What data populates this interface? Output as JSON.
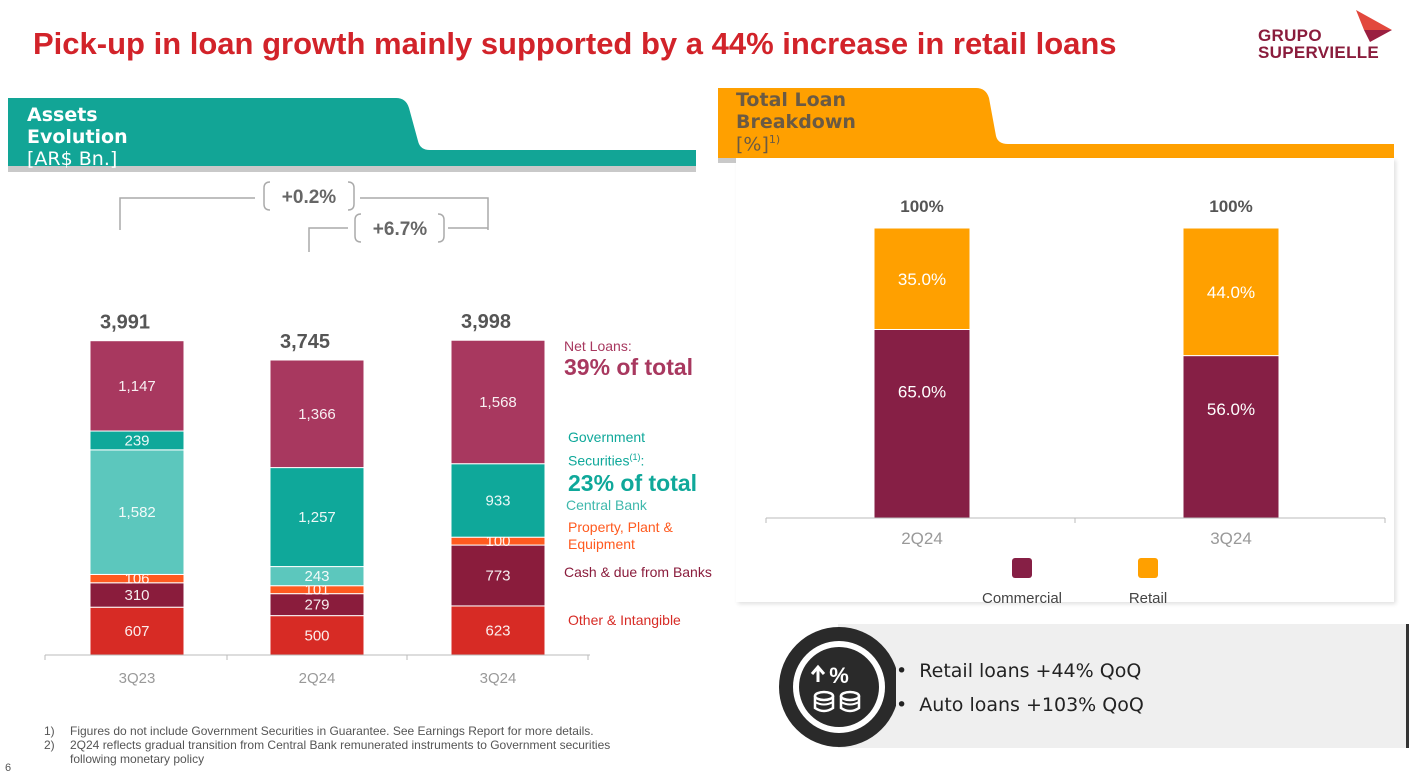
{
  "title": "Pick-up in loan growth mainly supported by a 44% increase in retail loans",
  "logo": {
    "line1": "GRUPO",
    "line2": "SUPERVIELLE"
  },
  "colors": {
    "red": "#d2232a",
    "teal": "#0fa89a",
    "lightTeal": "#5cc7bd",
    "maroon": "#8a1c3c",
    "rose": "#a8385f",
    "orange": "#ff5a1f",
    "gold": "#ffa000"
  },
  "assets_panel": {
    "title": "Assets Evolution",
    "unit": "[AR$ Bn.]",
    "change_all": "+0.2%",
    "change_qoq": "+6.7%",
    "legend": {
      "net_loans": "Net Loans:",
      "net_loans_share": "39% of total",
      "gov_sec_line1": "Government",
      "gov_sec_line2": "Securities",
      "gov_sec_sup": "(1)",
      "gov_sec_colon": ":",
      "gov_sec_share": "23% of total",
      "central_bank": "Central Bank",
      "ppe_line1": "Property, Plant &",
      "ppe_line2": "Equipment",
      "cash": "Cash & due from Banks",
      "other": "Other & Intangible"
    }
  },
  "loan_panel": {
    "title": "Total Loan Breakdown",
    "unit": "[%]",
    "unit_sup": "1)"
  },
  "chart_data": [
    {
      "type": "bar",
      "stacked": true,
      "categories": [
        "3Q23",
        "2Q24",
        "3Q24"
      ],
      "totals": [
        3991,
        3745,
        3998
      ],
      "total_labels": [
        "3,991",
        "3,745",
        "3,998"
      ],
      "series": [
        {
          "name": "Other & Intangible",
          "values": [
            607,
            500,
            623
          ],
          "labels": [
            "607",
            "500",
            "623"
          ],
          "color": "#d72b25"
        },
        {
          "name": "Cash & due from Banks",
          "values": [
            310,
            279,
            773
          ],
          "labels": [
            "310",
            "279",
            "773"
          ],
          "color": "#8a1c3c"
        },
        {
          "name": "Property, Plant & Equipment",
          "values": [
            106,
            101,
            100
          ],
          "labels": [
            "106",
            "101",
            "100"
          ],
          "color": "#ff5a1f"
        },
        {
          "name": "Central Bank",
          "values": [
            1582,
            243,
            0
          ],
          "labels": [
            "1,582",
            "243",
            ""
          ],
          "color": "#5cc7bd"
        },
        {
          "name": "Government Securities",
          "values": [
            239,
            1257,
            933
          ],
          "labels": [
            "239",
            "1,257",
            "933"
          ],
          "color": "#0fa89a"
        },
        {
          "name": "Net Loans",
          "values": [
            1147,
            1366,
            1568
          ],
          "labels": [
            "1,147",
            "1,366",
            "1,568"
          ],
          "color": "#a8385f"
        }
      ]
    },
    {
      "type": "bar",
      "stacked": true,
      "categories": [
        "2Q24",
        "3Q24"
      ],
      "totals_labels": [
        "100%",
        "100%"
      ],
      "ylim": [
        0,
        100
      ],
      "series": [
        {
          "name": "Commercial",
          "values": [
            65.0,
            56.0
          ],
          "labels": [
            "65.0%",
            "56.0%"
          ],
          "color": "#861f45"
        },
        {
          "name": "Retail",
          "values": [
            35.0,
            44.0
          ],
          "labels": [
            "35.0%",
            "44.0%"
          ],
          "color": "#ffa000"
        }
      ]
    }
  ],
  "callout": {
    "icon": "percent-coins-icon",
    "bullets": [
      "Retail loans +44% QoQ",
      "Auto loans +103% QoQ"
    ]
  },
  "footnotes": [
    {
      "num": "1)",
      "text": "Figures do not include Government Securities in Guarantee. See Earnings Report for more details."
    },
    {
      "num": "2)",
      "text": "2Q24 reflects gradual transition from Central Bank remunerated instruments to Government securities"
    },
    {
      "num": "",
      "text": "following monetary policy"
    }
  ],
  "page_number": "6"
}
